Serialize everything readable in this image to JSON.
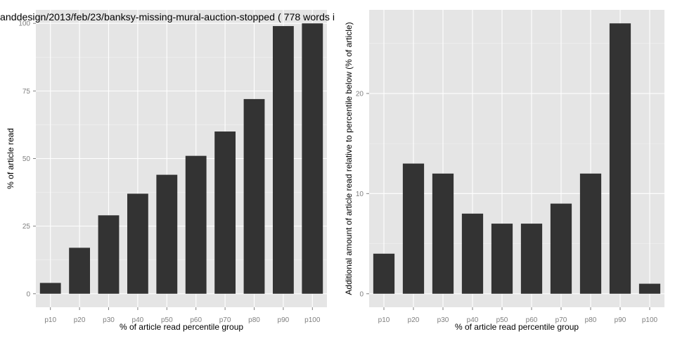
{
  "colors": {
    "panel_bg": "#e5e5e5",
    "grid_major": "#ffffff",
    "bar_fill": "#333333",
    "tick_text": "#7f7f7f"
  },
  "chart_data": [
    {
      "type": "bar",
      "title": "anddesign/2013/feb/23/banksy-missing-mural-auction-stopped ( 778 words i",
      "xlabel": "% of article read percentile group",
      "ylabel": "% of article read",
      "categories": [
        "p10",
        "p20",
        "p30",
        "p40",
        "p50",
        "p60",
        "p70",
        "p80",
        "p90",
        "p100"
      ],
      "values": [
        4,
        17,
        29,
        37,
        44,
        51,
        60,
        72,
        99,
        100
      ],
      "ylim": [
        -5,
        105
      ],
      "yticks": [
        0,
        25,
        50,
        75,
        100
      ],
      "grid": true,
      "legend": "none"
    },
    {
      "type": "bar",
      "title": "",
      "xlabel": "% of article read percentile group",
      "ylabel": "Additional amount of article read relative to percentile below (% of article)",
      "categories": [
        "p10",
        "p20",
        "p30",
        "p40",
        "p50",
        "p60",
        "p70",
        "p80",
        "p90",
        "p100"
      ],
      "values": [
        4,
        13,
        12,
        8,
        7,
        7,
        9,
        12,
        27,
        1
      ],
      "ylim": [
        -1.35,
        28.35
      ],
      "yticks": [
        0,
        10,
        20
      ],
      "grid": true,
      "legend": "none"
    }
  ]
}
